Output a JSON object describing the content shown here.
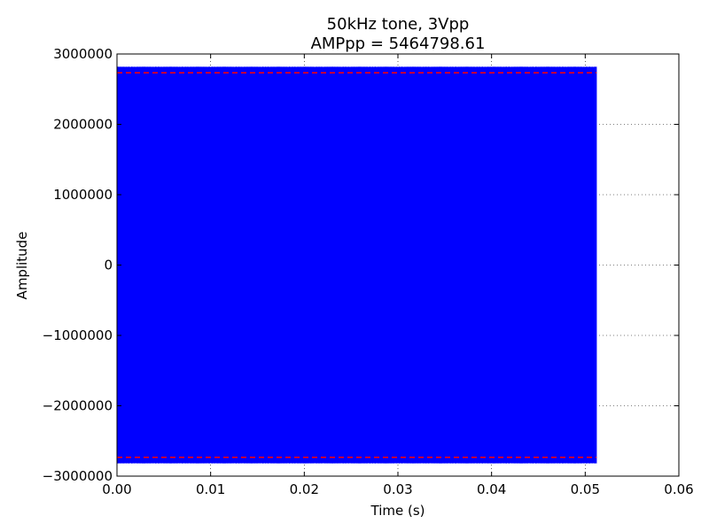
{
  "chart_data": {
    "type": "line",
    "title": [
      "50kHz tone, 3Vpp",
      "AMPpp = 5464798.61"
    ],
    "xlabel": "Time (s)",
    "ylabel": "Amplitude",
    "xlim": [
      0.0,
      0.06
    ],
    "ylim": [
      -3000000,
      3000000
    ],
    "x_ticks": [
      0.0,
      0.01,
      0.02,
      0.03,
      0.04,
      0.05,
      0.06
    ],
    "x_tick_labels": [
      "0.00",
      "0.01",
      "0.02",
      "0.03",
      "0.04",
      "0.05",
      "0.06"
    ],
    "y_ticks": [
      -3000000,
      -2000000,
      -1000000,
      0,
      1000000,
      2000000,
      3000000
    ],
    "y_tick_labels": [
      "−3000000",
      "−2000000",
      "−1000000",
      "0",
      "1000000",
      "2000000",
      "3000000"
    ],
    "grid": true,
    "series": [
      {
        "color": "#0000ff",
        "signal": "sine",
        "frequency_hz": 50000,
        "x_range": [
          0.0,
          0.0512
        ],
        "amplitude": 2820000
      }
    ],
    "reference_lines": [
      {
        "y": 2732399.3,
        "color": "#ff0000",
        "style": "dashed"
      },
      {
        "y": -2732399.3,
        "color": "#ff0000",
        "style": "dashed"
      }
    ]
  }
}
